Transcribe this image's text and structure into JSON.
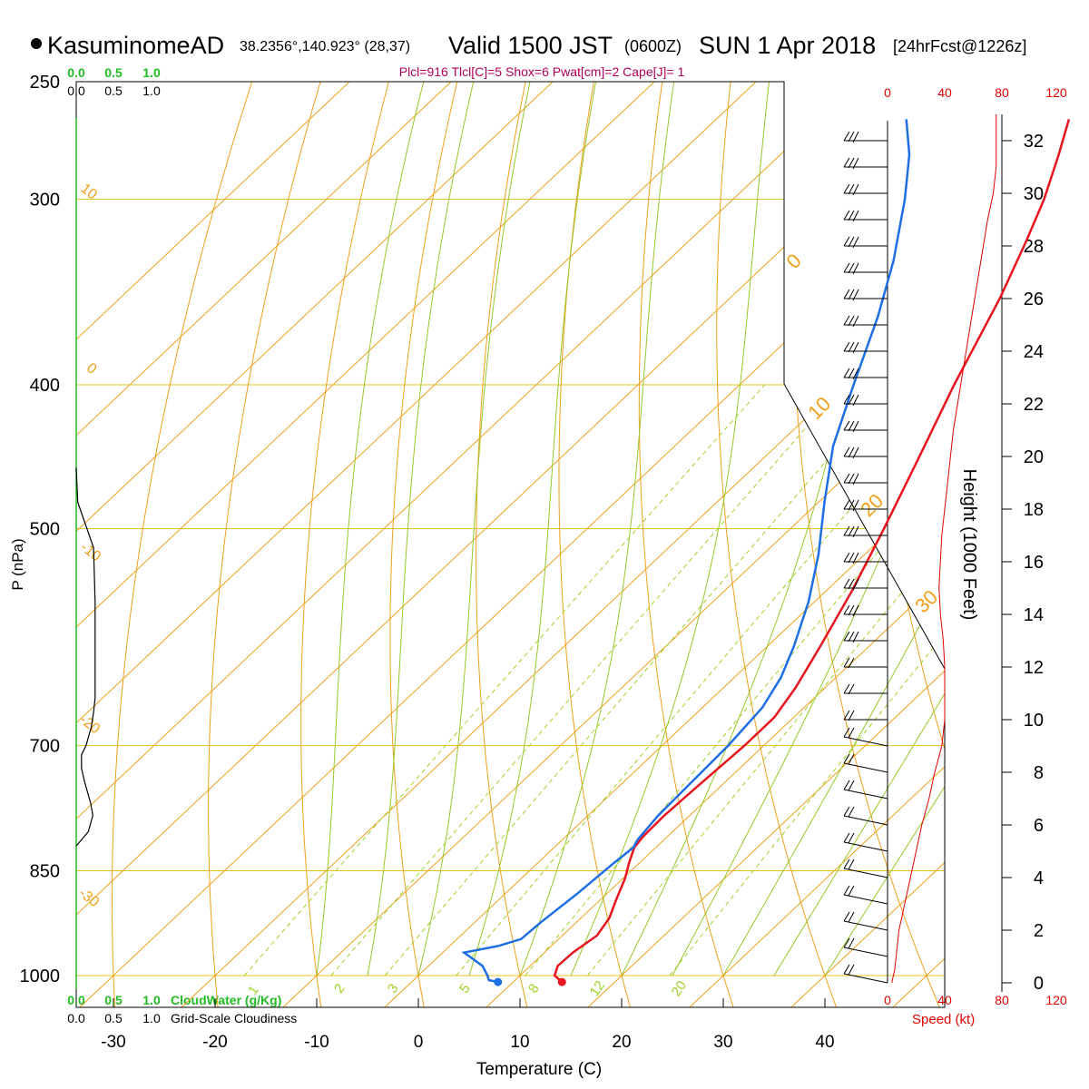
{
  "header": {
    "station": "KasuminomeAD",
    "coords": "38.2356°,140.923° (28,37)",
    "valid": "Valid 1500 JST",
    "zulu": "(0600Z)",
    "date": "SUN 1 Apr 2018",
    "fcst": "[24hrFcst@1226z]",
    "indices": "Plcl=916 Tlcl[C]=5 Shox=6 Pwat[cm]=2 Cape[J]= 1"
  },
  "labels": {
    "ylabel": "P (nPa)",
    "xlabel": "Temperature (C)",
    "height_label": "Height (1000 Feet)",
    "speed_label": "Speed (kt)",
    "cloudwater_label": "CloudWater (g/Kg)",
    "cloudiness_label": "Grid-Scale Cloudiness"
  },
  "colors": {
    "temp": "#e8141e",
    "dewpoint": "#1e6ee6",
    "isobar": "#e6c320",
    "isotherm": "#f0a019",
    "dry_adiabat": "#f0a019",
    "moist_adiabat": "#96c828",
    "mixing_ratio": "#a0d228",
    "cloudwater": "#22bb22",
    "speed": "#e00000"
  },
  "chart_data": {
    "type": "line",
    "diagram": "skew-t log-p",
    "pressure_ticks": [
      "250",
      "300",
      "400",
      "500",
      "700",
      "850",
      "1000"
    ],
    "temperature_ticks": [
      "-30",
      "-20",
      "-10",
      "0",
      "10",
      "20",
      "30",
      "40"
    ],
    "cloud_scale": [
      "0.0",
      "0.5",
      "1.0"
    ],
    "dry_adiabat_labels": [
      "10",
      "0",
      "-10",
      "-20",
      "-30"
    ],
    "moist_adiabat_labels": [
      "0",
      "10",
      "20",
      "30"
    ],
    "mixing_ratio_labels": [
      "1",
      "2",
      "3",
      "5",
      "8",
      "12",
      "20"
    ],
    "height_ticks": [
      "0",
      "2",
      "4",
      "6",
      "8",
      "10",
      "12",
      "14",
      "16",
      "18",
      "20",
      "22",
      "24",
      "26",
      "28",
      "30",
      "32"
    ],
    "speed_ticks": [
      "0",
      "40",
      "80",
      "120"
    ],
    "ylim": [
      1000,
      250
    ],
    "xlim": [
      -33,
      46
    ],
    "series": [
      {
        "key": "temperature",
        "points": [
          [
            1010,
            14.8
          ],
          [
            1000,
            13.4
          ],
          [
            985,
            12.7
          ],
          [
            965,
            12.8
          ],
          [
            940,
            13.4
          ],
          [
            915,
            12.8
          ],
          [
            890,
            11.6
          ],
          [
            860,
            10.2
          ],
          [
            840,
            9.0
          ],
          [
            820,
            7.9
          ],
          [
            805,
            7.6
          ],
          [
            780,
            7.5
          ],
          [
            750,
            7.7
          ],
          [
            700,
            8.1
          ],
          [
            670,
            8.1
          ],
          [
            640,
            7.1
          ],
          [
            600,
            5.2
          ],
          [
            550,
            2.5
          ],
          [
            500,
            -0.8
          ],
          [
            450,
            -4.6
          ],
          [
            400,
            -8.9
          ],
          [
            350,
            -13.4
          ],
          [
            320,
            -16.8
          ],
          [
            300,
            -19.4
          ],
          [
            280,
            -22.6
          ],
          [
            265,
            -25.3
          ]
        ]
      },
      {
        "key": "dewpoint",
        "points": [
          [
            1010,
            8.5
          ],
          [
            1007,
            7.4
          ],
          [
            1000,
            6.8
          ],
          [
            985,
            5.3
          ],
          [
            965,
            2.1
          ],
          [
            955,
            4.8
          ],
          [
            945,
            6.3
          ],
          [
            920,
            6.5
          ],
          [
            880,
            7.1
          ],
          [
            840,
            7.5
          ],
          [
            820,
            7.8
          ],
          [
            810,
            7.4
          ],
          [
            780,
            6.9
          ],
          [
            740,
            6.7
          ],
          [
            700,
            6.5
          ],
          [
            660,
            5.9
          ],
          [
            630,
            4.6
          ],
          [
            600,
            2.6
          ],
          [
            560,
            -0.6
          ],
          [
            520,
            -4.6
          ],
          [
            480,
            -9.4
          ],
          [
            440,
            -14.4
          ],
          [
            400,
            -18.8
          ],
          [
            360,
            -23.5
          ],
          [
            330,
            -27.8
          ],
          [
            300,
            -33.1
          ],
          [
            280,
            -37.3
          ],
          [
            265,
            -41.3
          ]
        ]
      },
      {
        "key": "cloudiness",
        "points": [
          [
            455,
            0.0
          ],
          [
            480,
            0.02
          ],
          [
            515,
            0.23
          ],
          [
            560,
            0.25
          ],
          [
            650,
            0.25
          ],
          [
            665,
            0.23
          ],
          [
            680,
            0.2
          ],
          [
            700,
            0.13
          ],
          [
            710,
            0.07
          ],
          [
            725,
            0.07
          ],
          [
            740,
            0.11
          ],
          [
            765,
            0.19
          ],
          [
            780,
            0.22
          ],
          [
            800,
            0.16
          ],
          [
            818,
            0.0
          ]
        ]
      },
      {
        "key": "speed",
        "points": [
          [
            0,
            3
          ],
          [
            0.5,
            5
          ],
          [
            1,
            6
          ],
          [
            1.5,
            7
          ],
          [
            2,
            8
          ],
          [
            3,
            12
          ],
          [
            4,
            16
          ],
          [
            5,
            20
          ],
          [
            6,
            24
          ],
          [
            7,
            29
          ],
          [
            8,
            33
          ],
          [
            9,
            38
          ],
          [
            10,
            40
          ],
          [
            11,
            40
          ],
          [
            12,
            40
          ],
          [
            13,
            39
          ],
          [
            14,
            37
          ],
          [
            15,
            36
          ],
          [
            17,
            38
          ],
          [
            19,
            42
          ],
          [
            21,
            46
          ],
          [
            23,
            52
          ],
          [
            25,
            58
          ],
          [
            27,
            64
          ],
          [
            29,
            70
          ],
          [
            30,
            74
          ],
          [
            31,
            76
          ],
          [
            32,
            76
          ],
          [
            33,
            76
          ]
        ]
      }
    ]
  }
}
